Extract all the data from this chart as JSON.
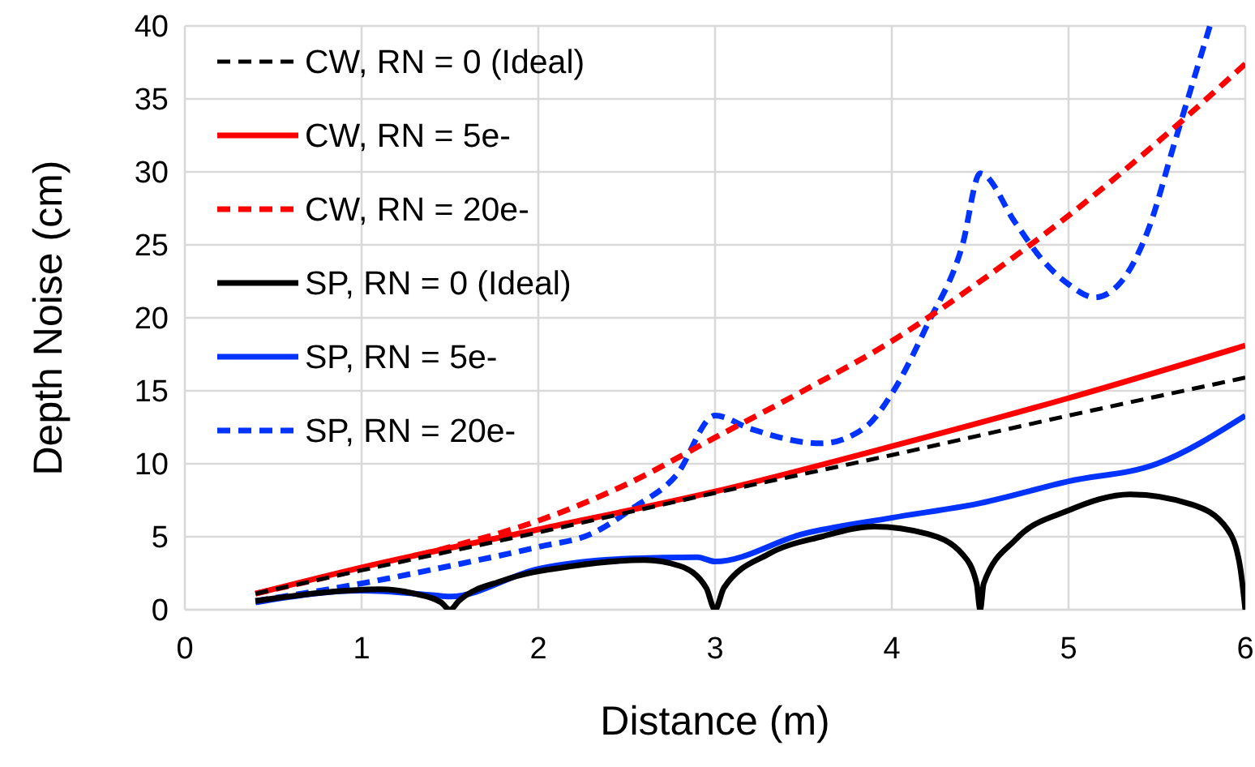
{
  "chart_data": {
    "type": "line",
    "xlabel": "Distance (m)",
    "ylabel": "Depth Noise (cm)",
    "xlim": [
      0,
      6
    ],
    "xticks": [
      0,
      1,
      2,
      3,
      4,
      5,
      6
    ],
    "ylim": [
      0,
      40
    ],
    "yticks": [
      0,
      5,
      10,
      15,
      20,
      25,
      30,
      35,
      40
    ],
    "grid": true,
    "legend": "top left",
    "series": [
      {
        "name": "CW, RN = 0 (Ideal)",
        "color": "#000000",
        "line_style": "dashed",
        "x": [
          0.4,
          1,
          2,
          3,
          4,
          5,
          6
        ],
        "values": [
          1.1,
          2.7,
          5.3,
          8,
          10.6,
          13.3,
          15.9
        ]
      },
      {
        "name": "CW, RN = 5e-",
        "color": "#ff0000",
        "line_style": "solid",
        "x": [
          0.4,
          1,
          2,
          3,
          4,
          5,
          6
        ],
        "values": [
          1.1,
          2.9,
          5.5,
          8.1,
          11.2,
          14.5,
          18.1
        ]
      },
      {
        "name": "CW, RN = 20e-",
        "color": "#ff0000",
        "line_style": "dashed",
        "x": [
          0.4,
          1,
          1.5,
          2,
          2.5,
          3,
          3.5,
          4,
          4.5,
          5,
          5.5,
          6
        ],
        "values": [
          1.1,
          2.8,
          4.3,
          6.1,
          8.6,
          11.8,
          15,
          18.4,
          22.5,
          27,
          32,
          37.4
        ]
      },
      {
        "name": "SP,  RN = 0 (Ideal)",
        "color": "#000000",
        "line_style": "solid",
        "x": [
          0.4,
          0.8,
          1.1,
          1.3,
          1.45,
          1.5,
          1.55,
          1.8,
          2.2,
          2.6,
          2.8,
          2.95,
          3,
          3.05,
          3.3,
          3.6,
          3.9,
          4.2,
          4.4,
          4.48,
          4.5,
          4.52,
          4.7,
          5,
          5.35,
          5.7,
          5.9,
          5.97,
          6
        ],
        "values": [
          0.6,
          1.2,
          1.4,
          1.1,
          0.5,
          0,
          0.6,
          2,
          3,
          3.4,
          3,
          1.5,
          0,
          1.5,
          3.8,
          5,
          5.7,
          5.2,
          3.8,
          1.8,
          0,
          1.8,
          4.8,
          6.8,
          7.9,
          7.2,
          5.5,
          3,
          0
        ]
      },
      {
        "name": "SP,  RN = 5e-",
        "color": "#0033ff",
        "line_style": "solid",
        "x": [
          0.4,
          1,
          1.4,
          1.5,
          2,
          2.5,
          2.9,
          3,
          3.5,
          4,
          4.5,
          5,
          5.5,
          6
        ],
        "values": [
          0.5,
          1.3,
          1,
          0.9,
          2.8,
          3.5,
          3.6,
          3.3,
          5.2,
          6.3,
          7.3,
          8.8,
          10,
          13.3
        ]
      },
      {
        "name": "SP,  RN = 20e-",
        "color": "#0033ff",
        "line_style": "dashed",
        "x": [
          0.4,
          1,
          1.5,
          2,
          2.3,
          2.54,
          2.78,
          3,
          3.2,
          3.6,
          3.85,
          4,
          4.2,
          4.4,
          4.5,
          4.7,
          4.85,
          5,
          5.15,
          5.3,
          5.45,
          5.6,
          5.8
        ],
        "values": [
          0.6,
          1.8,
          3,
          4.3,
          5.2,
          7,
          9.2,
          13.3,
          12.4,
          11.4,
          12.5,
          14.8,
          19.5,
          25,
          29.9,
          26.5,
          24,
          22.3,
          21.4,
          22.5,
          26,
          32,
          40
        ]
      }
    ]
  }
}
